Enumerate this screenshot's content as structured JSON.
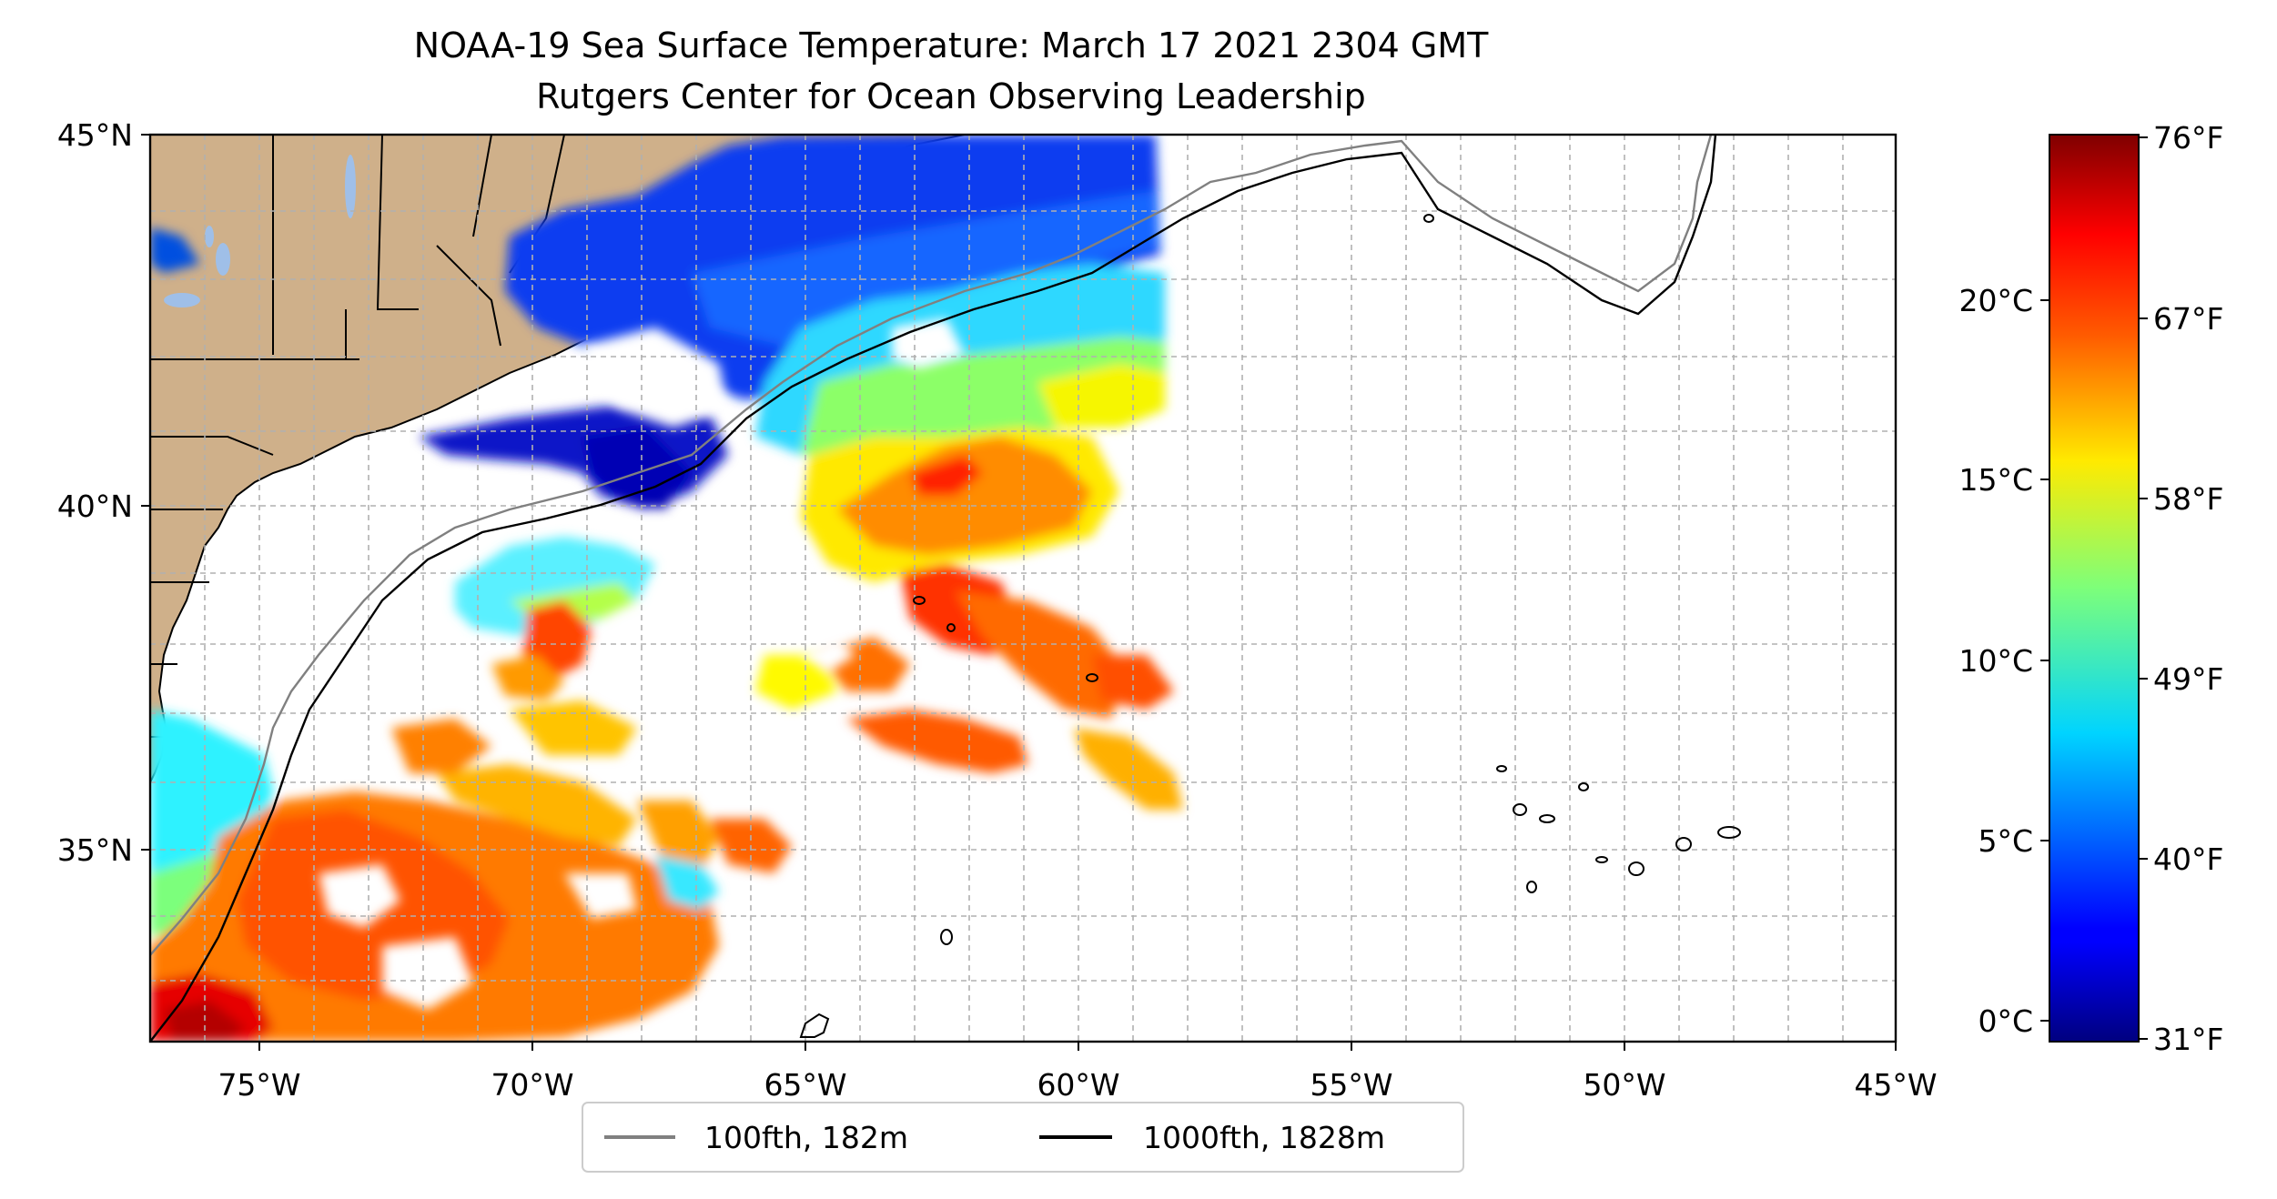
{
  "title": "NOAA-19 Sea Surface Temperature: March 17 2021 2304 GMT",
  "subtitle": "Rutgers Center for Ocean Observing Leadership",
  "map": {
    "lon_range": [
      -77,
      -45
    ],
    "lat_range": [
      32.3,
      45
    ],
    "lon_ticks": [
      {
        "value": -75,
        "label": "75°W"
      },
      {
        "value": -70,
        "label": "70°W"
      },
      {
        "value": -65,
        "label": "65°W"
      },
      {
        "value": -60,
        "label": "60°W"
      },
      {
        "value": -55,
        "label": "55°W"
      },
      {
        "value": -50,
        "label": "50°W"
      },
      {
        "value": -45,
        "label": "45°W"
      }
    ],
    "lat_ticks": [
      {
        "value": 45,
        "label": "45°N"
      },
      {
        "value": 40,
        "label": "40°N"
      },
      {
        "value": 35,
        "label": "35°N"
      }
    ],
    "grid": true,
    "land_color": "#cfb08a",
    "lake_color": "#9fbfe8",
    "bathymetry_colors": {
      "100fth": "#808080",
      "1000fth": "#000000"
    }
  },
  "legend": {
    "placement": "bottom-center",
    "items": [
      {
        "label": "100fth, 182m",
        "color": "#808080"
      },
      {
        "label": "1000fth, 1828m",
        "color": "#000000"
      }
    ]
  },
  "colorbar": {
    "colormap": "jet",
    "range_f": [
      31,
      76
    ],
    "celsius_ticks": [
      {
        "value": 20,
        "label": "20°C"
      },
      {
        "value": 15,
        "label": "15°C"
      },
      {
        "value": 10,
        "label": "10°C"
      },
      {
        "value": 5,
        "label": "5°C"
      },
      {
        "value": 0,
        "label": "0°C"
      }
    ],
    "fahrenheit_ticks": [
      {
        "value": 76,
        "label": "76°F"
      },
      {
        "value": 67,
        "label": "67°F"
      },
      {
        "value": 58,
        "label": "58°F"
      },
      {
        "value": 49,
        "label": "49°F"
      },
      {
        "value": 40,
        "label": "40°F"
      },
      {
        "value": 31,
        "label": "31°F"
      }
    ]
  }
}
